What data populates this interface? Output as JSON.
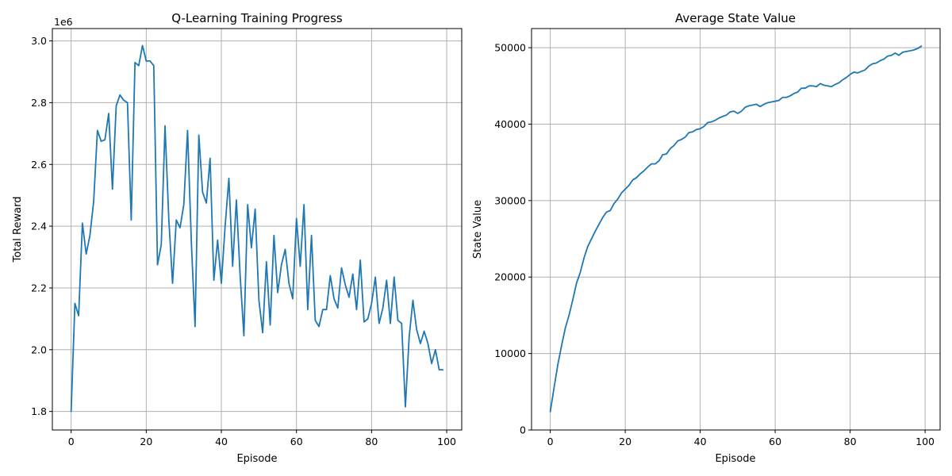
{
  "colors": {
    "series": "#1f77b4",
    "grid": "#b0b0b0",
    "background": "#ffffff"
  },
  "chart_data": [
    {
      "type": "line",
      "title": "Q-Learning Training Progress",
      "xlabel": "Episode",
      "ylabel": "Total Reward",
      "offset_text": "1e6",
      "xlim": [
        -5,
        104
      ],
      "ylim": [
        1740000,
        3040000
      ],
      "xticks": [
        0,
        20,
        40,
        60,
        80,
        100
      ],
      "xtick_labels": [
        "0",
        "20",
        "40",
        "60",
        "80",
        "100"
      ],
      "yticks": [
        1800000,
        2000000,
        2200000,
        2400000,
        2600000,
        2800000,
        3000000
      ],
      "ytick_labels": [
        "1.8",
        "2.0",
        "2.2",
        "2.4",
        "2.6",
        "2.8",
        "3.0"
      ],
      "grid": true,
      "series": [
        {
          "x": [
            0,
            1,
            2,
            3,
            4,
            5,
            6,
            7,
            8,
            9,
            10,
            11,
            12,
            13,
            14,
            15,
            16,
            17,
            18,
            19,
            20,
            21,
            22,
            23,
            24,
            25,
            26,
            27,
            28,
            29,
            30,
            31,
            32,
            33,
            34,
            35,
            36,
            37,
            38,
            39,
            40,
            41,
            42,
            43,
            44,
            45,
            46,
            47,
            48,
            49,
            50,
            51,
            52,
            53,
            54,
            55,
            56,
            57,
            58,
            59,
            60,
            61,
            62,
            63,
            64,
            65,
            66,
            67,
            68,
            69,
            70,
            71,
            72,
            73,
            74,
            75,
            76,
            77,
            78,
            79,
            80,
            81,
            82,
            83,
            84,
            85,
            86,
            87,
            88,
            89,
            90,
            91,
            92,
            93,
            94,
            95,
            96,
            97,
            98,
            99
          ],
          "values": [
            1800000,
            2150000,
            2110000,
            2410000,
            2310000,
            2370000,
            2480000,
            2710000,
            2675000,
            2680000,
            2765000,
            2520000,
            2790000,
            2825000,
            2808000,
            2800000,
            2420000,
            2930000,
            2920000,
            2985000,
            2935000,
            2935000,
            2920000,
            2275000,
            2340000,
            2725000,
            2425000,
            2215000,
            2420000,
            2395000,
            2470000,
            2710000,
            2350000,
            2075000,
            2695000,
            2510000,
            2475000,
            2620000,
            2225000,
            2355000,
            2215000,
            2400000,
            2555000,
            2270000,
            2485000,
            2240000,
            2045000,
            2470000,
            2330000,
            2455000,
            2160000,
            2055000,
            2285000,
            2080000,
            2370000,
            2185000,
            2275000,
            2325000,
            2215000,
            2165000,
            2425000,
            2270000,
            2470000,
            2130000,
            2370000,
            2095000,
            2075000,
            2130000,
            2130000,
            2240000,
            2165000,
            2135000,
            2265000,
            2210000,
            2170000,
            2245000,
            2130000,
            2290000,
            2090000,
            2100000,
            2150000,
            2235000,
            2085000,
            2135000,
            2225000,
            2085000,
            2235000,
            2095000,
            2085000,
            1815000,
            2040000,
            2160000,
            2065000,
            2020000,
            2060000,
            2020000,
            1955000,
            2000000,
            1935000,
            1935000
          ]
        }
      ]
    },
    {
      "type": "line",
      "title": "Average State Value",
      "xlabel": "Episode",
      "ylabel": "State Value",
      "xlim": [
        -5,
        104
      ],
      "ylim": [
        0,
        52500
      ],
      "xticks": [
        0,
        20,
        40,
        60,
        80,
        100
      ],
      "xtick_labels": [
        "0",
        "20",
        "40",
        "60",
        "80",
        "100"
      ],
      "yticks": [
        0,
        10000,
        20000,
        30000,
        40000,
        50000
      ],
      "ytick_labels": [
        "0",
        "10000",
        "20000",
        "30000",
        "40000",
        "50000"
      ],
      "grid": true,
      "series": [
        {
          "x": [
            0,
            1,
            2,
            3,
            4,
            5,
            6,
            7,
            8,
            9,
            10,
            11,
            12,
            13,
            14,
            15,
            16,
            17,
            18,
            19,
            20,
            21,
            22,
            23,
            24,
            25,
            26,
            27,
            28,
            29,
            30,
            31,
            32,
            33,
            34,
            35,
            36,
            37,
            38,
            39,
            40,
            41,
            42,
            43,
            44,
            45,
            46,
            47,
            48,
            49,
            50,
            51,
            52,
            53,
            54,
            55,
            56,
            57,
            58,
            59,
            60,
            61,
            62,
            63,
            64,
            65,
            66,
            67,
            68,
            69,
            70,
            71,
            72,
            73,
            74,
            75,
            76,
            77,
            78,
            79,
            80,
            81,
            82,
            83,
            84,
            85,
            86,
            87,
            88,
            89,
            90,
            91,
            92,
            93,
            94,
            95,
            96,
            97,
            98,
            99
          ],
          "values": [
            2400,
            5500,
            8500,
            11000,
            13300,
            15000,
            17000,
            19200,
            20600,
            22500,
            24000,
            25000,
            26000,
            26900,
            27800,
            28500,
            28700,
            29600,
            30200,
            31000,
            31500,
            32000,
            32700,
            33000,
            33500,
            33900,
            34400,
            34800,
            34800,
            35200,
            36000,
            36100,
            36800,
            37200,
            37800,
            38000,
            38300,
            38900,
            39000,
            39300,
            39400,
            39700,
            40200,
            40300,
            40500,
            40800,
            41000,
            41200,
            41600,
            41700,
            41400,
            41700,
            42200,
            42400,
            42500,
            42600,
            42300,
            42600,
            42800,
            42900,
            43000,
            43100,
            43500,
            43500,
            43700,
            44000,
            44200,
            44700,
            44700,
            45000,
            45000,
            44900,
            45300,
            45100,
            45000,
            44900,
            45200,
            45400,
            45800,
            46100,
            46500,
            46800,
            46700,
            46900,
            47100,
            47600,
            47900,
            48000,
            48300,
            48500,
            48900,
            49000,
            49300,
            49000,
            49400,
            49500,
            49600,
            49700,
            49900,
            50200
          ]
        }
      ]
    }
  ]
}
